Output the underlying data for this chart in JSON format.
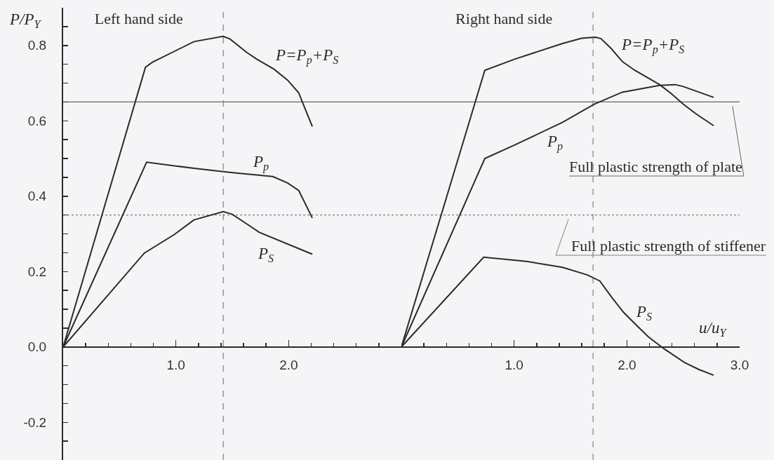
{
  "chart_data": [
    {
      "type": "line",
      "title": "Left hand side",
      "ylabel": "P/P$_{Y}$",
      "series": [
        {
          "name": "P=P$_{p}$+P$_{S}$",
          "color": "#2b2b2b",
          "x": [
            0,
            0.73,
            0.79,
            1.16,
            1.42,
            1.48,
            1.63,
            1.72,
            1.87,
            1.99,
            2.09,
            2.12,
            2.21
          ],
          "values": [
            0,
            0.742,
            0.755,
            0.81,
            0.824,
            0.817,
            0.781,
            0.763,
            0.737,
            0.708,
            0.674,
            0.651,
            0.585
          ]
        },
        {
          "name": "P$_{p}$",
          "color": "#2b2b2b",
          "x": [
            0,
            0.74,
            1.16,
            1.42,
            1.52,
            1.86,
            1.99,
            2.09,
            2.21
          ],
          "values": [
            0,
            0.49,
            0.474,
            0.465,
            0.462,
            0.452,
            0.435,
            0.415,
            0.342
          ]
        },
        {
          "name": "P$_{S}$",
          "color": "#2b2b2b",
          "x": [
            0,
            0.72,
            0.99,
            1.16,
            1.42,
            1.5,
            1.63,
            1.74,
            2.21
          ],
          "values": [
            0,
            0.249,
            0.299,
            0.337,
            0.359,
            0.352,
            0.326,
            0.304,
            0.246
          ]
        }
      ],
      "xlim": [
        0,
        3
      ],
      "xticks": [
        {
          "value": 0.2,
          "label": null
        },
        {
          "value": 0.4,
          "label": null
        },
        {
          "value": 0.6,
          "label": null
        },
        {
          "value": 0.8,
          "label": null
        },
        {
          "value": 1,
          "label": "1.0"
        },
        {
          "value": 1.2,
          "label": null
        },
        {
          "value": 1.4,
          "label": null
        },
        {
          "value": 1.6,
          "label": null
        },
        {
          "value": 1.8,
          "label": null
        },
        {
          "value": 2,
          "label": "2.0"
        },
        {
          "value": 2.2,
          "label": null
        },
        {
          "value": 2.4,
          "label": null
        },
        {
          "value": 2.6,
          "label": null
        },
        {
          "value": 2.8,
          "label": null
        }
      ],
      "ylim": [
        -0.3,
        0.9
      ],
      "yticks": [
        {
          "value": -0.25,
          "label": null
        },
        -0.2,
        {
          "value": -0.15,
          "label": null
        },
        {
          "value": -0.1,
          "label": null
        },
        {
          "value": -0.05,
          "label": null
        },
        {
          "value": 0,
          "label": "0.0"
        },
        {
          "value": 0.05,
          "label": null
        },
        {
          "value": 0.1,
          "label": null
        },
        {
          "value": 0.15,
          "label": null
        },
        0.2,
        {
          "value": 0.25,
          "label": null
        },
        {
          "value": 0.3,
          "label": null
        },
        {
          "value": 0.35,
          "label": null
        },
        0.4,
        {
          "value": 0.45,
          "label": null
        },
        {
          "value": 0.5,
          "label": null
        },
        {
          "value": 0.55,
          "label": null
        },
        0.6,
        {
          "value": 0.65,
          "label": null
        },
        {
          "value": 0.7,
          "label": null
        },
        {
          "value": 0.75,
          "label": null
        },
        0.8,
        {
          "value": 0.85,
          "label": null
        }
      ],
      "ref_lines": [
        {
          "axis": "y",
          "value": 0.65,
          "color": "#666666"
        },
        {
          "axis": "y",
          "value": 0.35,
          "color": "#808080",
          "line_style": "dotted"
        },
        {
          "axis": "x",
          "value": 1.42,
          "color": "#808080",
          "line_style": "dashed"
        }
      ]
    },
    {
      "type": "line",
      "title": "Right hand side",
      "xlabel": "u/u$_{Y}$",
      "series": [
        {
          "name": "P=P$_{p}$+P$_{S}$",
          "color": "#2b2b2b",
          "x": [
            0,
            0.74,
            1,
            1.43,
            1.6,
            1.72,
            1.77,
            1.86,
            1.96,
            2.07,
            2.29,
            2.39,
            2.5,
            2.61,
            2.77
          ],
          "values": [
            0,
            0.734,
            0.763,
            0.805,
            0.819,
            0.822,
            0.818,
            0.792,
            0.757,
            0.734,
            0.696,
            0.673,
            0.644,
            0.619,
            0.587
          ]
        },
        {
          "name": "P$_{p}$",
          "color": "#2b2b2b",
          "x": [
            0,
            0.74,
            1,
            1.43,
            1.71,
            1.96,
            2.29,
            2.43,
            2.5,
            2.77
          ],
          "values": [
            0,
            0.5,
            0.535,
            0.596,
            0.644,
            0.676,
            0.694,
            0.696,
            0.691,
            0.662
          ]
        },
        {
          "name": "P$_{S}$",
          "color": "#2b2b2b",
          "x": [
            0,
            0.73,
            1.11,
            1.43,
            1.65,
            1.76,
            1.87,
            1.97,
            2.08,
            2.19,
            2.33,
            2.51,
            2.64,
            2.77
          ],
          "values": [
            0,
            0.238,
            0.227,
            0.211,
            0.191,
            0.175,
            0.13,
            0.092,
            0.059,
            0.027,
            -0.005,
            -0.041,
            -0.06,
            -0.075
          ]
        }
      ],
      "xlim": [
        0,
        3
      ],
      "xticks": [
        {
          "value": 0.2,
          "label": null
        },
        {
          "value": 0.4,
          "label": null
        },
        {
          "value": 0.6,
          "label": null
        },
        {
          "value": 0.8,
          "label": null
        },
        {
          "value": 1,
          "label": "1.0"
        },
        {
          "value": 1.2,
          "label": null
        },
        {
          "value": 1.4,
          "label": null
        },
        {
          "value": 1.6,
          "label": null
        },
        {
          "value": 1.8,
          "label": null
        },
        {
          "value": 2,
          "label": "2.0"
        },
        {
          "value": 2.2,
          "label": null
        },
        {
          "value": 2.4,
          "label": null
        },
        {
          "value": 2.6,
          "label": null
        },
        {
          "value": 2.8,
          "label": null
        },
        {
          "value": 3,
          "label": "3.0"
        }
      ],
      "ylim": [
        -0.3,
        0.9
      ],
      "tick_labels": "x",
      "ref_lines": [
        {
          "axis": "y",
          "value": 0.65,
          "label": "Full plastic strength of plate",
          "color": "#666666"
        },
        {
          "axis": "y",
          "value": 0.35,
          "label": "Full plastic strength of stiffener",
          "color": "#808080",
          "line_style": "dotted"
        },
        {
          "axis": "x",
          "value": 1.7,
          "color": "#808080",
          "line_style": "dashed"
        }
      ]
    }
  ]
}
